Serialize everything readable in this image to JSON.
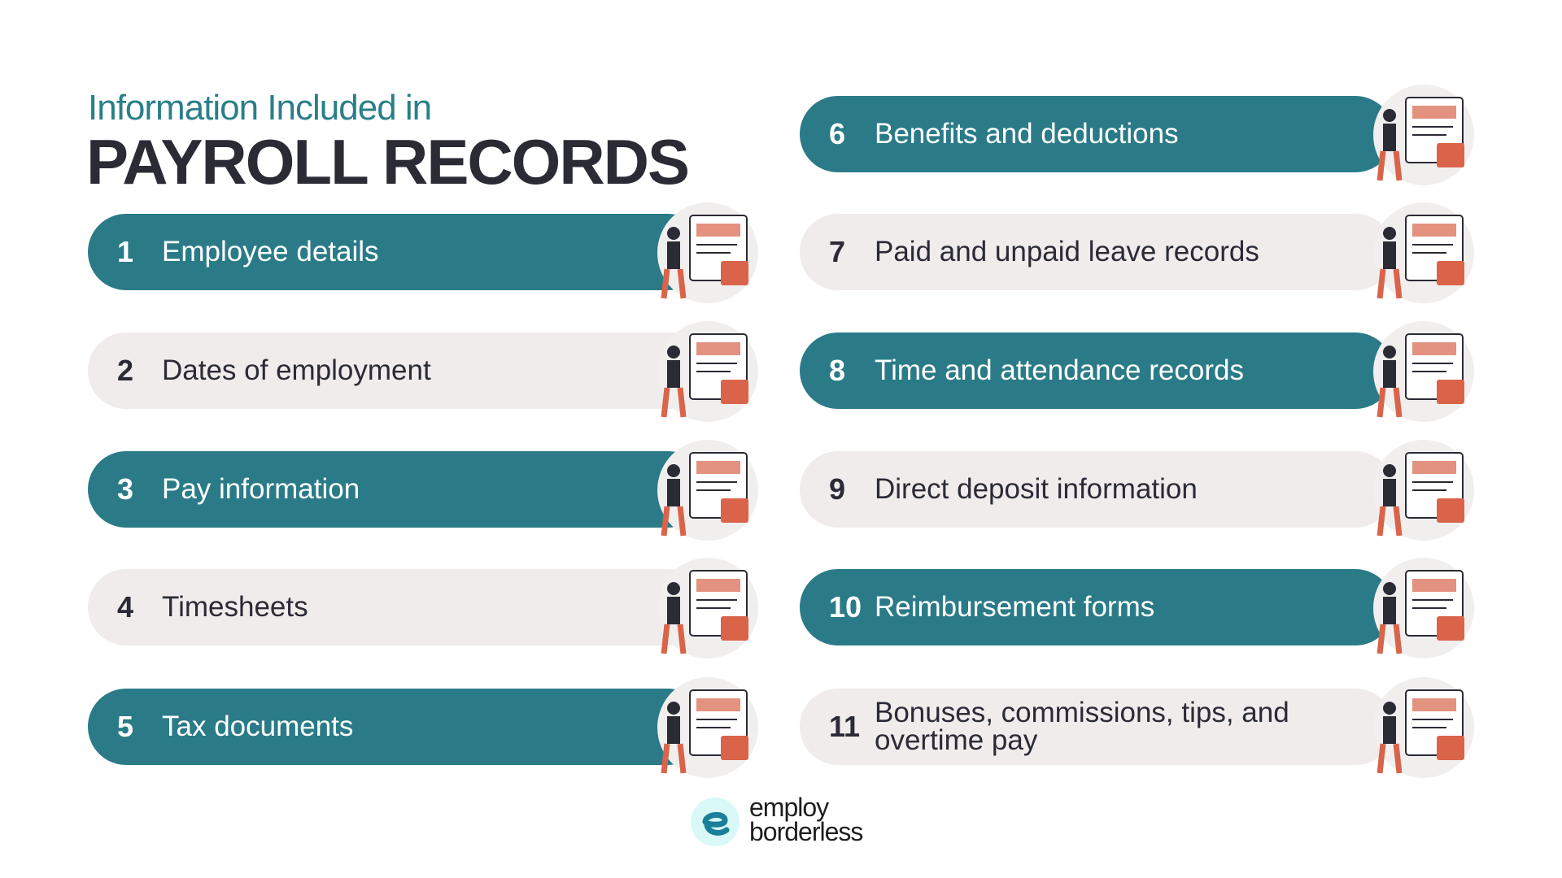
{
  "header": {
    "subtitle": "Information Included in",
    "title": "PAYROLL RECORDS"
  },
  "colors": {
    "teal": "#2a7b87",
    "gray": "#efeceb",
    "accent": "#d9644a",
    "dark": "#2b2b36"
  },
  "items": [
    {
      "number": "1",
      "label": "Employee details",
      "style": "teal",
      "icon": "employee-profile-illustration"
    },
    {
      "number": "2",
      "label": "Dates of employment",
      "style": "gray",
      "icon": "calendar-hourglass-illustration"
    },
    {
      "number": "3",
      "label": "Pay information",
      "style": "teal",
      "icon": "mobile-payment-illustration"
    },
    {
      "number": "4",
      "label": "Timesheets",
      "style": "gray",
      "icon": "timesheet-clipboard-illustration"
    },
    {
      "number": "5",
      "label": "Tax documents",
      "style": "teal",
      "icon": "tax-document-illustration"
    },
    {
      "number": "6",
      "label": "Benefits and deductions",
      "style": "teal",
      "icon": "clipboard-calculator-illustration"
    },
    {
      "number": "7",
      "label": "Paid and unpaid leave records",
      "style": "gray",
      "icon": "house-leave-illustration"
    },
    {
      "number": "8",
      "label": "Time and attendance records",
      "style": "teal",
      "icon": "attendance-calendar-illustration"
    },
    {
      "number": "9",
      "label": "Direct deposit information",
      "style": "gray",
      "icon": "bank-deposit-illustration"
    },
    {
      "number": "10",
      "label": "Reimbursement forms",
      "style": "teal",
      "icon": "reimbursement-desk-illustration"
    },
    {
      "number": "11",
      "label": "Bonuses, commissions, tips, and overtime pay",
      "style": "gray",
      "icon": "bonus-rocket-illustration"
    }
  ],
  "logo": {
    "line1": "employ",
    "line2": "borderless"
  }
}
